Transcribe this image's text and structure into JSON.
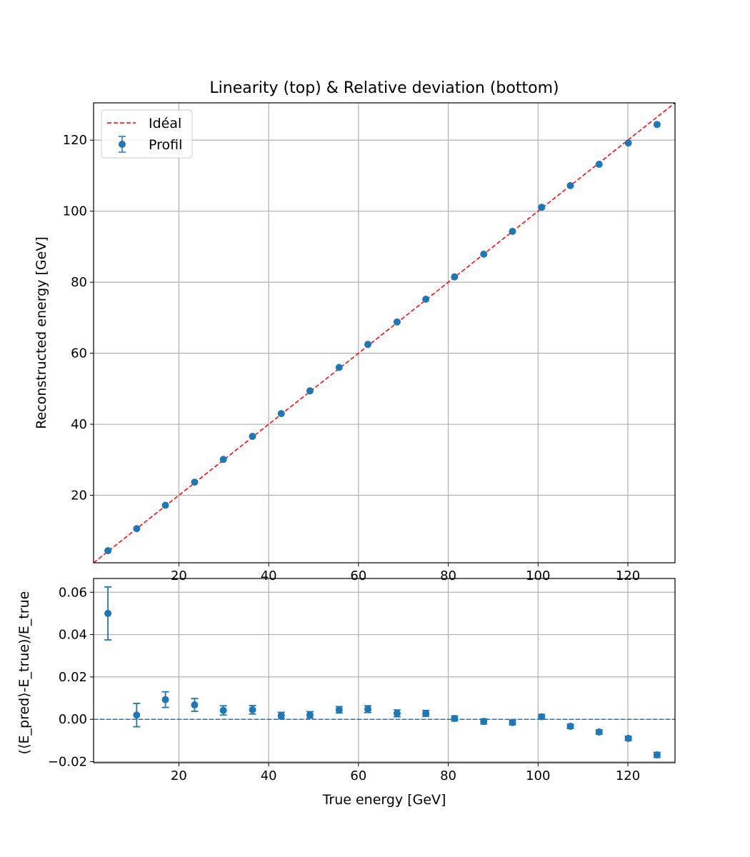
{
  "chart_data": [
    {
      "type": "scatter",
      "title": "Linearity (top) & Relative deviation (bottom)",
      "xlabel": "",
      "ylabel": "Reconstructed energy [GeV]",
      "xlim": [
        1,
        130.5
      ],
      "ylim": [
        1,
        130.5
      ],
      "xticks": [
        20,
        40,
        60,
        80,
        100,
        120
      ],
      "yticks": [
        20,
        40,
        60,
        80,
        100,
        120
      ],
      "grid": true,
      "legend_position": "top-left",
      "ideal_line": {
        "name": "Idéal",
        "style": "dashed",
        "color": "#ff0000",
        "x": [
          1,
          130.5
        ],
        "y": [
          1,
          130.5
        ]
      },
      "series": [
        {
          "name": "Profil",
          "color": "#1f77b4",
          "x": [
            4.2,
            10.6,
            17.0,
            23.5,
            29.9,
            36.4,
            42.8,
            49.2,
            55.7,
            62.1,
            68.6,
            75.0,
            81.4,
            87.9,
            94.3,
            100.8,
            107.2,
            113.6,
            120.1,
            126.5
          ],
          "y": [
            4.4,
            10.6,
            17.2,
            23.7,
            30.1,
            36.6,
            43.0,
            49.4,
            56.0,
            62.5,
            68.8,
            75.2,
            81.5,
            87.9,
            94.3,
            101.1,
            107.2,
            113.2,
            119.2,
            124.4
          ],
          "yerr": [
            0.05,
            0.06,
            0.07,
            0.07,
            0.07,
            0.07,
            0.07,
            0.07,
            0.07,
            0.08,
            0.08,
            0.08,
            0.08,
            0.08,
            0.08,
            0.08,
            0.08,
            0.08,
            0.08,
            0.08
          ]
        }
      ]
    },
    {
      "type": "scatter",
      "title": "",
      "xlabel": "True energy [GeV]",
      "ylabel": "(⟨E_pred⟩-E_true)/E_true",
      "xlim": [
        1,
        130.5
      ],
      "ylim": [
        -0.0205,
        0.0665
      ],
      "xticks": [
        20,
        40,
        60,
        80,
        100,
        120
      ],
      "yticks": [
        -0.02,
        0.0,
        0.02,
        0.04,
        0.06
      ],
      "ytick_labels": [
        "−0.02",
        "0.00",
        "0.02",
        "0.04",
        "0.06"
      ],
      "grid": true,
      "reference_line": {
        "y": 0,
        "style": "dashed",
        "color": "#1f77b4"
      },
      "series": [
        {
          "name": "",
          "color": "#1f77b4",
          "x": [
            4.2,
            10.6,
            17.0,
            23.5,
            29.9,
            36.4,
            42.8,
            49.2,
            55.7,
            62.1,
            68.6,
            75.0,
            81.4,
            87.9,
            94.3,
            100.8,
            107.2,
            113.6,
            120.1,
            126.5
          ],
          "y": [
            0.05,
            0.002,
            0.0093,
            0.0068,
            0.0042,
            0.0045,
            0.0018,
            0.0021,
            0.0045,
            0.0048,
            0.0028,
            0.0028,
            0.0004,
            -0.001,
            -0.0015,
            0.0012,
            -0.0033,
            -0.006,
            -0.009,
            -0.0168
          ],
          "yerr": [
            0.0125,
            0.0055,
            0.0037,
            0.003,
            0.0022,
            0.002,
            0.0015,
            0.0015,
            0.0015,
            0.0016,
            0.0016,
            0.0014,
            0.0012,
            0.0012,
            0.0011,
            0.0011,
            0.001,
            0.001,
            0.001,
            0.0012
          ]
        }
      ]
    }
  ]
}
